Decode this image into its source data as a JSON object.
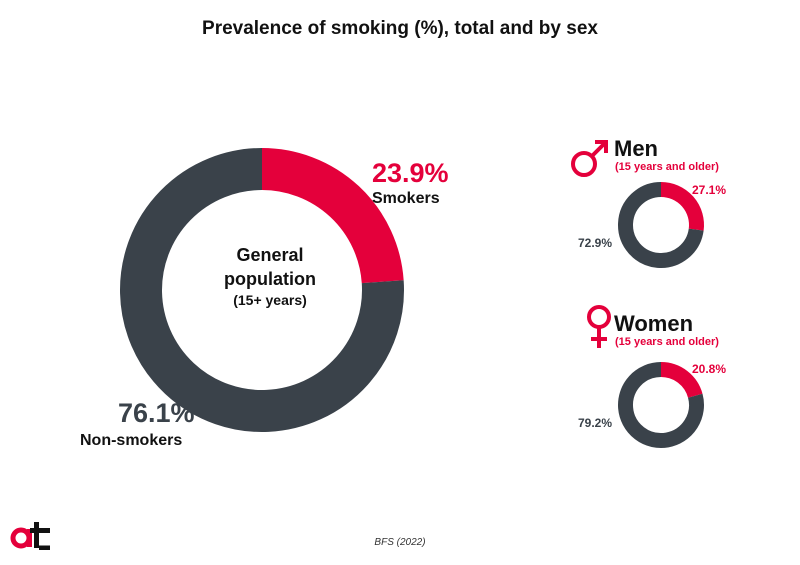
{
  "title": "Prevalence of smoking (%), total and by sex",
  "colors": {
    "smokers": "#e4003b",
    "non_smokers": "#3a424a"
  },
  "general": {
    "center_line1": "General",
    "center_line2": "population",
    "center_sub": "(15+ years)",
    "smokers_pct_label": "23.9%",
    "smokers_label": "Smokers",
    "non_smokers_pct_label": "76.1%",
    "non_smokers_label": "Non-smokers"
  },
  "men": {
    "icon": "male-symbol-icon",
    "title": "Men",
    "subtitle": "(15 years and older)",
    "smokers_pct_label": "27.1%",
    "non_smokers_pct_label": "72.9%"
  },
  "women": {
    "icon": "female-symbol-icon",
    "title": "Women",
    "subtitle": "(15 years and older)",
    "smokers_pct_label": "20.8%",
    "non_smokers_pct_label": "79.2%"
  },
  "source": "BFS (2022)",
  "logo": "at-logo",
  "chart_data": [
    {
      "type": "pie",
      "name": "General population",
      "categories": [
        "Smokers",
        "Non-smokers"
      ],
      "values": [
        23.9,
        76.1
      ]
    },
    {
      "type": "pie",
      "name": "Men",
      "categories": [
        "Smokers",
        "Non-smokers"
      ],
      "values": [
        27.1,
        72.9
      ]
    },
    {
      "type": "pie",
      "name": "Women",
      "categories": [
        "Smokers",
        "Non-smokers"
      ],
      "values": [
        20.8,
        79.2
      ]
    }
  ]
}
